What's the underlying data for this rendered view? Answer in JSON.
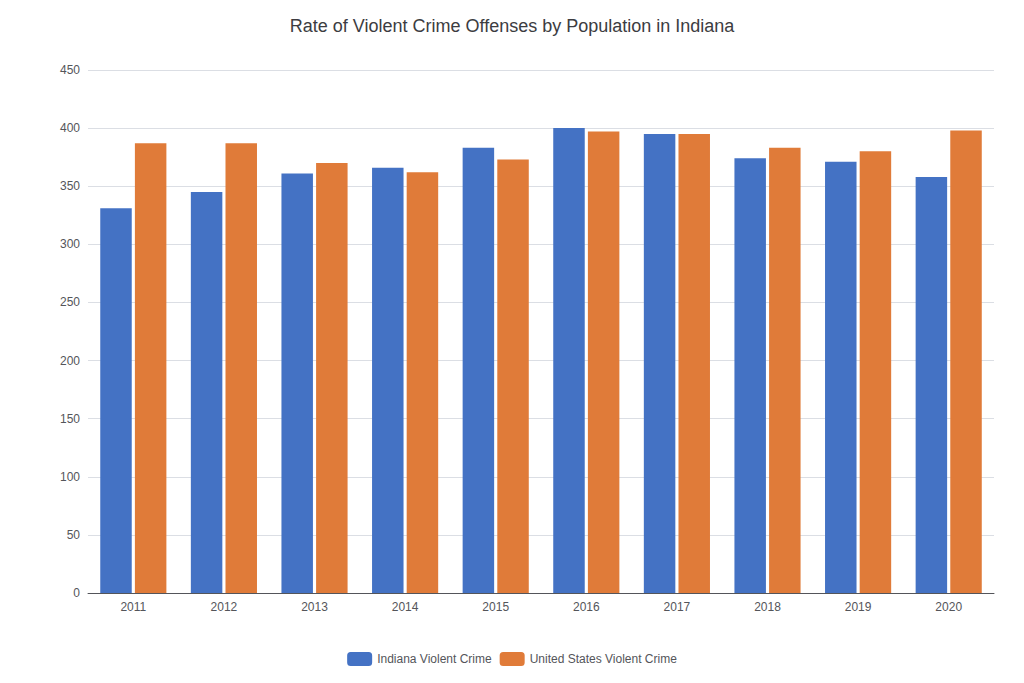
{
  "chart_data": {
    "type": "bar",
    "title": "Rate of Violent Crime Offenses by Population in Indiana",
    "categories": [
      "2011",
      "2012",
      "2013",
      "2014",
      "2015",
      "2016",
      "2017",
      "2018",
      "2019",
      "2020"
    ],
    "series": [
      {
        "name": "Indiana Violent Crime",
        "color": "#4472C4",
        "values": [
          331,
          345,
          361,
          366,
          383,
          400,
          395,
          374,
          371,
          358
        ]
      },
      {
        "name": "United States Violent Crime",
        "color": "#E07B39",
        "values": [
          387,
          387,
          370,
          362,
          373,
          397,
          395,
          383,
          380,
          398
        ]
      }
    ],
    "ylim": [
      0,
      450
    ],
    "yticks": [
      0,
      50,
      100,
      150,
      200,
      250,
      300,
      350,
      400,
      450
    ],
    "grid": true,
    "legend": "bottom"
  }
}
